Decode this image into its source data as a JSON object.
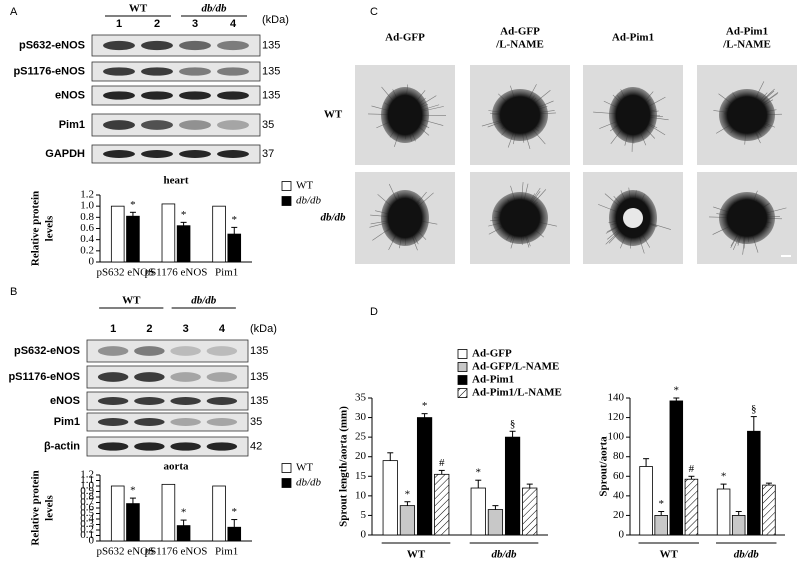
{
  "panel_letters": [
    "A",
    "B",
    "C",
    "D"
  ],
  "blots": [
    {
      "groups": [
        "WT",
        "db/db"
      ],
      "lanes": [
        "1",
        "2",
        "3",
        "4"
      ],
      "unit": "(kDa)",
      "rows": [
        {
          "label": "pS632-eNOS",
          "kda": "135"
        },
        {
          "label": "pS1176-eNOS",
          "kda": "135"
        },
        {
          "label": "eNOS",
          "kda": "135"
        },
        {
          "label": "Pim1",
          "kda": "35"
        },
        {
          "label": "GAPDH",
          "kda": "37"
        }
      ]
    },
    {
      "groups": [
        "WT",
        "db/db"
      ],
      "lanes": [
        "1",
        "2",
        "3",
        "4"
      ],
      "unit": "(kDa)",
      "rows": [
        {
          "label": "pS632-eNOS",
          "kda": "135"
        },
        {
          "label": "pS1176-eNOS",
          "kda": "135"
        },
        {
          "label": "eNOS",
          "kda": "135"
        },
        {
          "label": "Pim1",
          "kda": "35"
        },
        {
          "label": "β-actin",
          "kda": "42"
        }
      ]
    }
  ],
  "images": {
    "columns": [
      [
        "Ad-GFP"
      ],
      [
        "Ad-GFP",
        "/L-NAME"
      ],
      [
        "Ad-Pim1"
      ],
      [
        "Ad-Pim1",
        "/L-NAME"
      ]
    ],
    "rows": [
      "WT",
      "db/db"
    ]
  },
  "chart_data": [
    {
      "type": "bar",
      "title": "heart",
      "ylabel": [
        "Relative protein",
        "levels"
      ],
      "categories": [
        "pS632 eNOS",
        "pS1176 eNOS",
        "Pim1"
      ],
      "series": [
        {
          "name": "WT",
          "color": "#ffffff",
          "values": [
            1.0,
            1.04,
            1.0
          ]
        },
        {
          "name": "db/db",
          "color": "#000000",
          "values": [
            0.82,
            0.65,
            0.5
          ],
          "errors": [
            0.07,
            0.06,
            0.12
          ],
          "markers": [
            "*",
            "*",
            "*"
          ]
        }
      ],
      "ylim": [
        0,
        1.2
      ],
      "yticks": [
        0,
        0.2,
        0.4,
        0.6,
        0.8,
        {
          "value": 1,
          "label": "1.0"
        },
        1.2
      ],
      "legend": "right"
    },
    {
      "type": "bar",
      "title": "aorta",
      "ylabel": [
        "Relative protein",
        "levels"
      ],
      "categories": [
        "pS632 eNOS",
        "pS1176 eNOS",
        "Pim1"
      ],
      "series": [
        {
          "name": "WT",
          "color": "#ffffff",
          "values": [
            1.0,
            1.03,
            1.0
          ]
        },
        {
          "name": "db/db",
          "color": "#000000",
          "values": [
            0.68,
            0.28,
            0.25
          ],
          "errors": [
            0.1,
            0.1,
            0.14
          ],
          "markers": [
            "*",
            "*",
            "*"
          ]
        }
      ],
      "ylim": [
        0,
        1.2
      ],
      "yticks": [
        0,
        0.1,
        0.2,
        0.3,
        0.4,
        0.5,
        0.6,
        0.7,
        0.8,
        0.9,
        {
          "value": 1,
          "label": "1.0"
        },
        1.1,
        1.2
      ],
      "legend": "right"
    },
    {
      "type": "bar",
      "ylabel": [
        "Sprout length/aorta (mm)"
      ],
      "categories": [
        "WT",
        "db/db"
      ],
      "series": [
        {
          "name": "Ad-GFP",
          "color": "#ffffff",
          "values": [
            19,
            12
          ],
          "errors": [
            2,
            2
          ],
          "markers": [
            null,
            "*"
          ]
        },
        {
          "name": "Ad-GFP/L-NAME",
          "color": "#c8c8c8",
          "values": [
            7.5,
            6.5
          ],
          "errors": [
            1,
            1
          ],
          "markers": [
            "*",
            null
          ]
        },
        {
          "name": "Ad-Pim1",
          "color": "#000000",
          "values": [
            30,
            25
          ],
          "errors": [
            1,
            1.5
          ],
          "markers": [
            "*",
            "§"
          ]
        },
        {
          "name": "Ad-Pim1/L-NAME",
          "color": "#ffffff",
          "hatch": true,
          "values": [
            15.5,
            12
          ],
          "errors": [
            1,
            1
          ],
          "markers": [
            "#",
            null
          ]
        }
      ],
      "ylim": [
        0,
        35
      ],
      "yticks": [
        0,
        5,
        10,
        15,
        20,
        25,
        30,
        35
      ],
      "legend": "top"
    },
    {
      "type": "bar",
      "ylabel": [
        "Sprout/aorta"
      ],
      "categories": [
        "WT",
        "db/db"
      ],
      "series": [
        {
          "color": "#ffffff",
          "values": [
            70,
            47
          ],
          "errors": [
            8,
            5
          ],
          "markers": [
            null,
            "*"
          ]
        },
        {
          "color": "#c8c8c8",
          "values": [
            20,
            20
          ],
          "errors": [
            4,
            4
          ],
          "markers": [
            "*",
            null
          ]
        },
        {
          "color": "#000000",
          "values": [
            137,
            106
          ],
          "errors": [
            3,
            15
          ],
          "markers": [
            "*",
            "§"
          ]
        },
        {
          "color": "#ffffff",
          "hatch": true,
          "values": [
            57,
            51
          ],
          "errors": [
            3,
            2
          ],
          "markers": [
            "#",
            null
          ]
        }
      ],
      "ylim": [
        0,
        140
      ],
      "yticks": [
        0,
        20,
        40,
        60,
        80,
        100,
        120,
        140
      ]
    }
  ]
}
